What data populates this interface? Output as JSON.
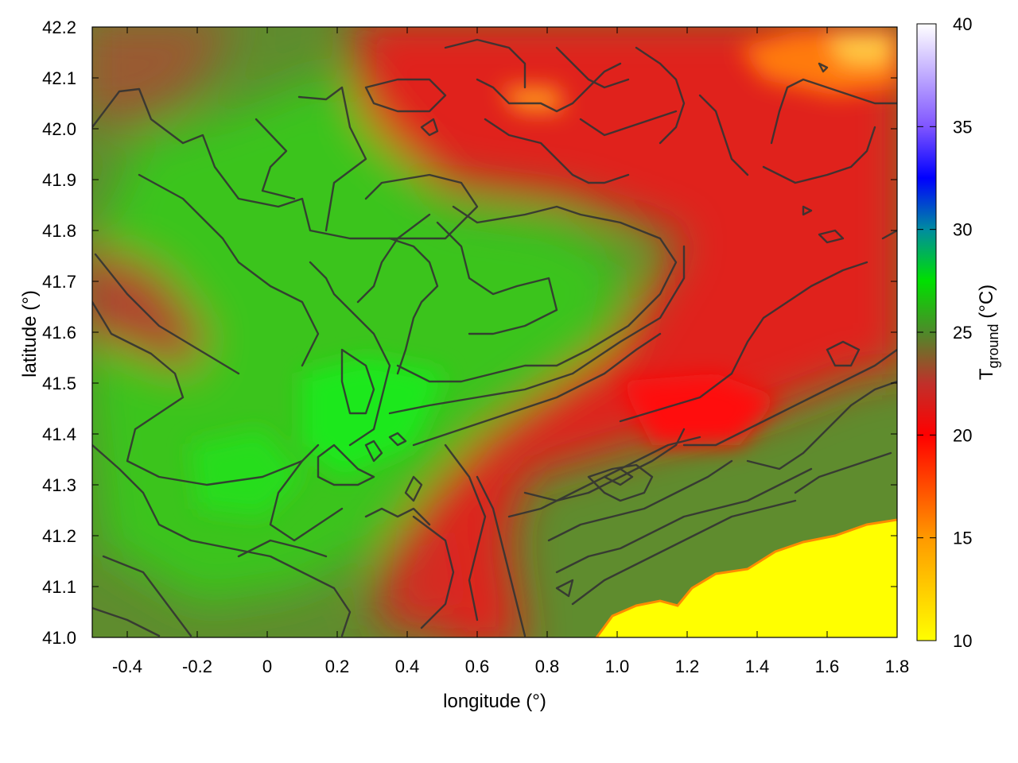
{
  "chart_data": {
    "type": "heatmap",
    "xlabel": "longitude (°)",
    "ylabel": "latitude (°)",
    "colorbar_label": {
      "main": "T",
      "sub": "ground",
      "unit": " (°C)"
    },
    "xlim": [
      -0.5,
      1.8
    ],
    "ylim": [
      41.0,
      42.2
    ],
    "x_ticks": [
      -0.4,
      -0.2,
      0.0,
      0.2,
      0.4,
      0.6,
      0.8,
      1.0,
      1.2,
      1.4,
      1.6,
      1.8
    ],
    "x_tick_labels": [
      "-0.4",
      "-0.2",
      "0",
      "0.2",
      "0.4",
      "0.6",
      "0.8",
      "1.0",
      "1.2",
      "1.4",
      "1.6",
      "1.8"
    ],
    "y_ticks": [
      41.0,
      41.1,
      41.2,
      41.3,
      41.4,
      41.5,
      41.6,
      41.7,
      41.8,
      41.9,
      42.0,
      42.1,
      42.2
    ],
    "y_tick_labels": [
      "41.0",
      "41.1",
      "41.2",
      "41.3",
      "41.4",
      "41.5",
      "41.6",
      "41.7",
      "41.8",
      "41.9",
      "42.0",
      "42.1",
      "42.2"
    ],
    "color_range": [
      10,
      40
    ],
    "colorbar_ticks": [
      10,
      15,
      20,
      25,
      30,
      35,
      40
    ],
    "colorbar_tick_labels": [
      "10",
      "15",
      "20",
      "25",
      "30",
      "35",
      "40"
    ],
    "colormap": [
      {
        "value": 10,
        "color": "#ffff00"
      },
      {
        "value": 15,
        "color": "#ff9900"
      },
      {
        "value": 20,
        "color": "#ff0000"
      },
      {
        "value": 22.5,
        "color": "#c0302a"
      },
      {
        "value": 25,
        "color": "#4e8a2a"
      },
      {
        "value": 27.5,
        "color": "#00e000"
      },
      {
        "value": 30,
        "color": "#008ca0"
      },
      {
        "value": 32.5,
        "color": "#0000ff"
      },
      {
        "value": 35,
        "color": "#7f55ff"
      },
      {
        "value": 40,
        "color": "#ffffff"
      }
    ],
    "regions": [
      {
        "name": "west-central interior (green)",
        "lon_center": 0.2,
        "lat_center": 41.45,
        "T_approx": 26.5
      },
      {
        "name": "northeast (red)",
        "lon_center": 1.4,
        "lat_center": 41.8,
        "T_approx": 20.5
      },
      {
        "name": "far northeast corner (orange)",
        "lon_center": 1.65,
        "lat_center": 42.15,
        "T_approx": 15
      },
      {
        "name": "southeast coast (sea, yellow)",
        "lon_center": 1.5,
        "lat_center": 41.08,
        "T_approx": 10
      }
    ],
    "contours": true,
    "grid": true,
    "legend": "none"
  }
}
